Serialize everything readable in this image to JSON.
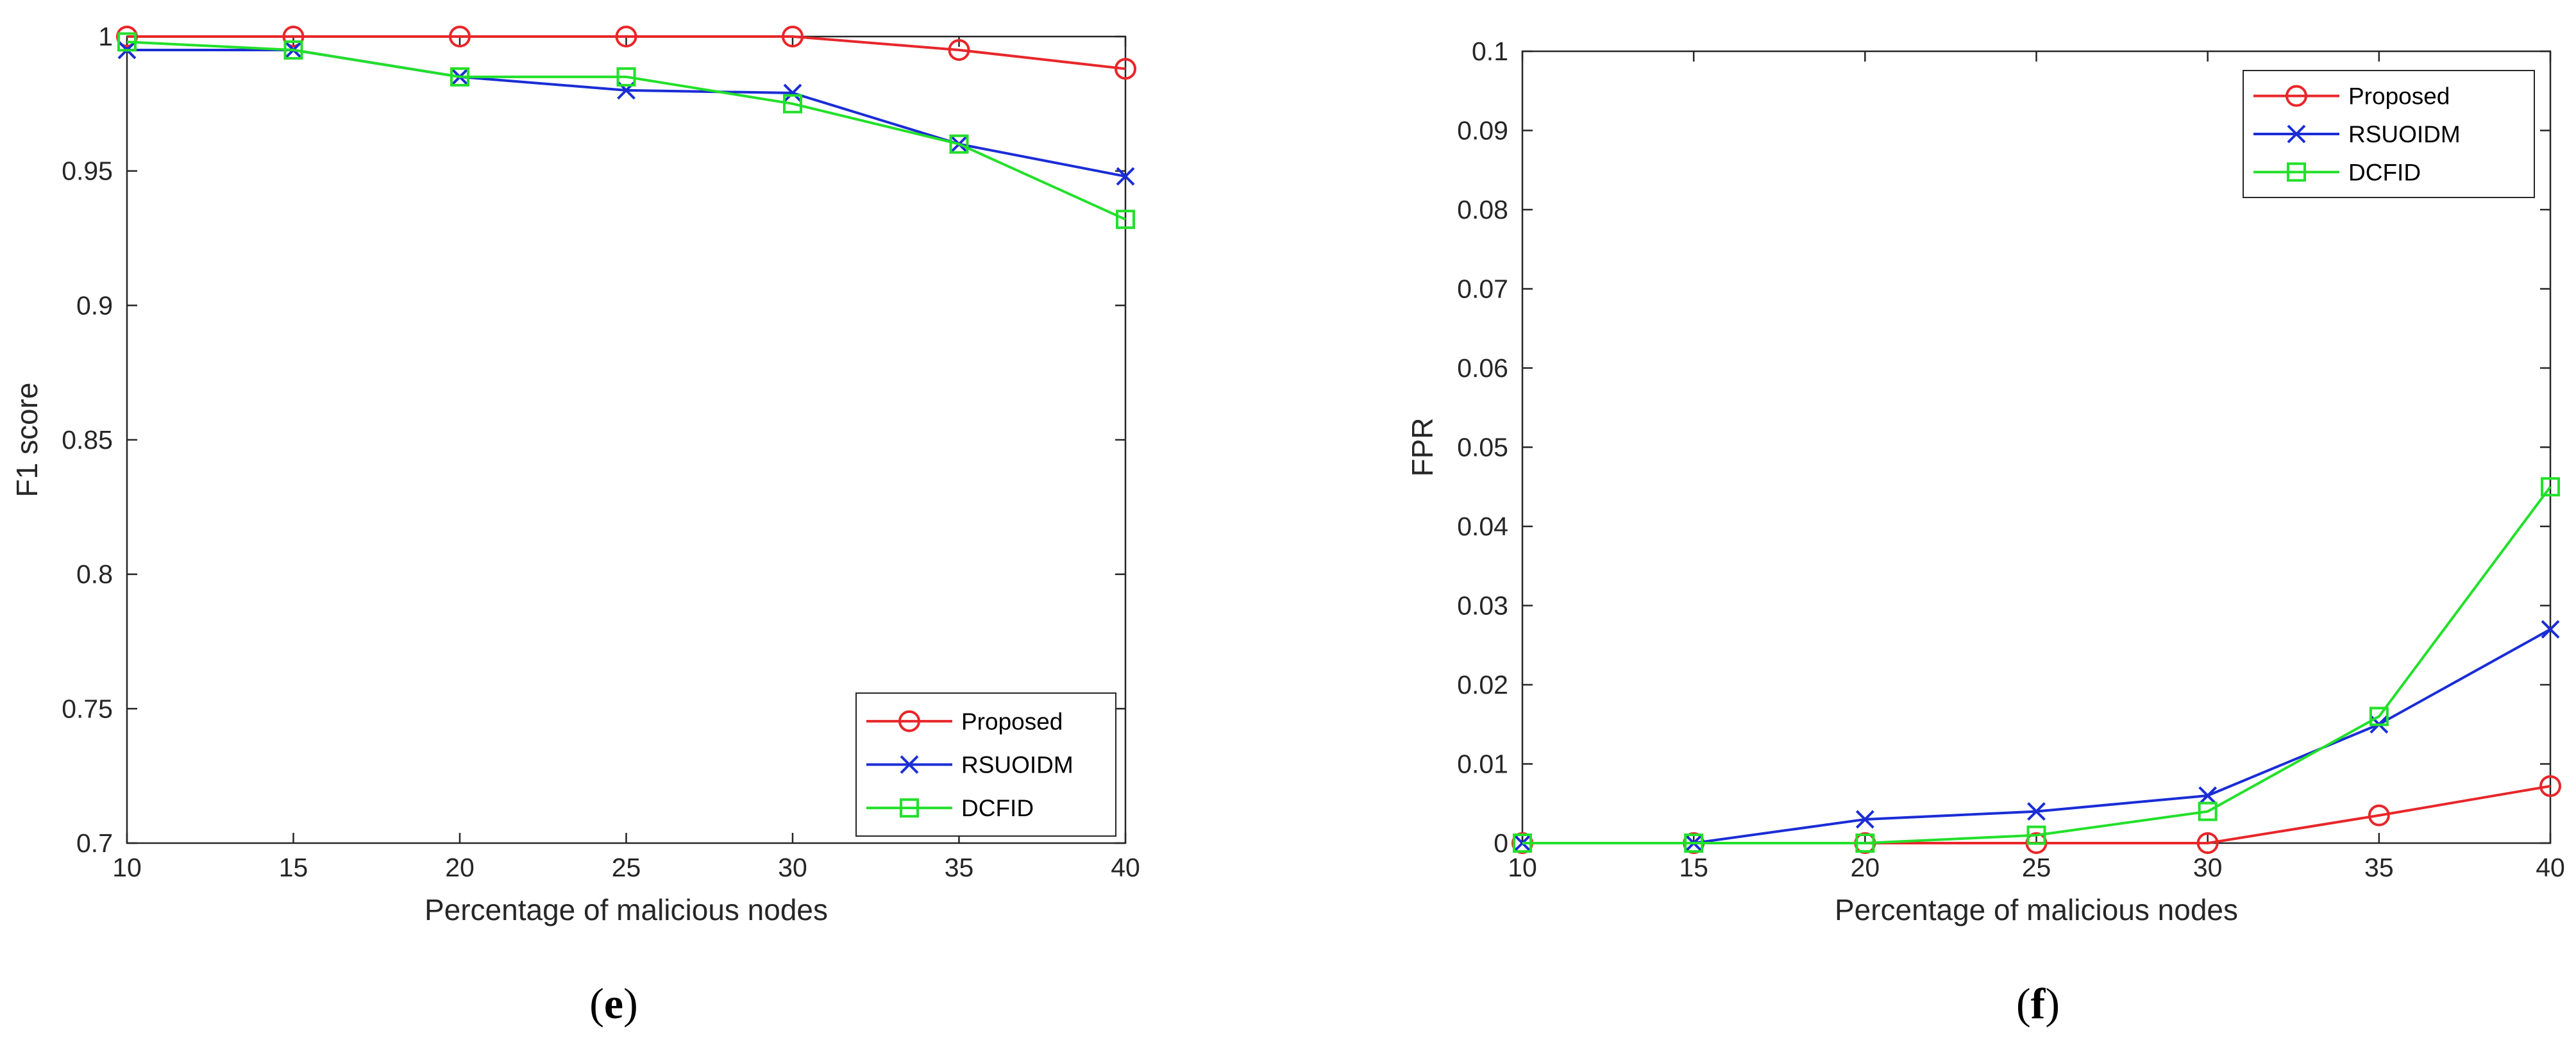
{
  "chart_data": [
    {
      "type": "line",
      "caption_letter": "e",
      "title": "",
      "xlabel": "Percentage of malicious nodes",
      "ylabel": "F1 score",
      "xlim": [
        10,
        40
      ],
      "ylim": [
        0.7,
        1.0
      ],
      "x": [
        10,
        15,
        20,
        25,
        30,
        35,
        40
      ],
      "xticks": [
        10,
        15,
        20,
        25,
        30,
        35,
        40
      ],
      "xtick_labels": [
        "10",
        "15",
        "20",
        "25",
        "30",
        "35",
        "40"
      ],
      "yticks": [
        0.7,
        0.75,
        0.8,
        0.85,
        0.9,
        0.95,
        1.0
      ],
      "ytick_labels": [
        "0.7",
        "0.75",
        "0.8",
        "0.85",
        "0.9",
        "0.95",
        "1"
      ],
      "legend_position": "bottom-right",
      "series": [
        {
          "name": "Proposed",
          "color": "#e8262a",
          "marker": "circle",
          "values": [
            1.0,
            1.0,
            1.0,
            1.0,
            1.0,
            0.995,
            0.988
          ]
        },
        {
          "name": "RSUOIDM",
          "color": "#1a2dd6",
          "marker": "x",
          "values": [
            0.995,
            0.995,
            0.985,
            0.98,
            0.979,
            0.96,
            0.948
          ]
        },
        {
          "name": "DCFID",
          "color": "#22e02a",
          "marker": "square",
          "values": [
            0.998,
            0.995,
            0.985,
            0.985,
            0.975,
            0.96,
            0.932
          ]
        }
      ]
    },
    {
      "type": "line",
      "caption_letter": "f",
      "title": "",
      "xlabel": "Percentage of malicious nodes",
      "ylabel": "FPR",
      "xlim": [
        10,
        40
      ],
      "ylim": [
        0,
        0.1
      ],
      "x": [
        10,
        15,
        20,
        25,
        30,
        35,
        40
      ],
      "xticks": [
        10,
        15,
        20,
        25,
        30,
        35,
        40
      ],
      "xtick_labels": [
        "10",
        "15",
        "20",
        "25",
        "30",
        "35",
        "40"
      ],
      "yticks": [
        0,
        0.01,
        0.02,
        0.03,
        0.04,
        0.05,
        0.06,
        0.07,
        0.08,
        0.09,
        0.1
      ],
      "ytick_labels": [
        "0",
        "0.01",
        "0.02",
        "0.03",
        "0.04",
        "0.05",
        "0.06",
        "0.07",
        "0.08",
        "0.09",
        "0.1"
      ],
      "legend_position": "top-right",
      "series": [
        {
          "name": "Proposed",
          "color": "#e8262a",
          "marker": "circle",
          "values": [
            0,
            0,
            0,
            0,
            0,
            0.0035,
            0.0072
          ]
        },
        {
          "name": "RSUOIDM",
          "color": "#1a2dd6",
          "marker": "x",
          "values": [
            0,
            0,
            0.003,
            0.004,
            0.006,
            0.015,
            0.027
          ]
        },
        {
          "name": "DCFID",
          "color": "#22e02a",
          "marker": "square",
          "values": [
            0,
            0,
            0,
            0.001,
            0.004,
            0.016,
            0.045
          ]
        }
      ]
    }
  ]
}
